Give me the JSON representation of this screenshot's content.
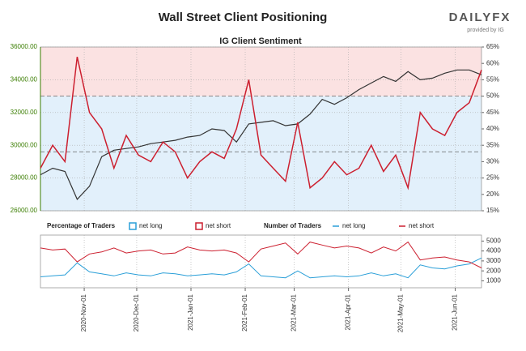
{
  "branding": {
    "logo": "DAILYFX",
    "provided_by": "provided by IG"
  },
  "chart_data": [
    {
      "type": "line",
      "title": "Wall Street Client Positioning",
      "subtitle": "IG Client Sentiment",
      "x": [
        "2020-10-07",
        "2020-10-14",
        "2020-10-21",
        "2020-10-28",
        "2020-11-04",
        "2020-11-11",
        "2020-11-18",
        "2020-11-25",
        "2020-12-02",
        "2020-12-09",
        "2020-12-16",
        "2020-12-23",
        "2020-12-30",
        "2021-01-06",
        "2021-01-13",
        "2021-01-20",
        "2021-01-27",
        "2021-02-03",
        "2021-02-10",
        "2021-02-17",
        "2021-02-24",
        "2021-03-03",
        "2021-03-10",
        "2021-03-17",
        "2021-03-24",
        "2021-03-31",
        "2021-04-07",
        "2021-04-14",
        "2021-04-21",
        "2021-04-28",
        "2021-05-05",
        "2021-05-12",
        "2021-05-19",
        "2021-05-26",
        "2021-06-02",
        "2021-06-09",
        "2021-06-16"
      ],
      "xlim": [
        "2020-10-07",
        "2021-06-16"
      ],
      "ylim": [
        26000,
        36000
      ],
      "yticks": [
        {
          "value": 26000,
          "label": "26000.00"
        },
        {
          "value": 28000,
          "label": "28000.00"
        },
        {
          "value": 30000,
          "label": "30000.00"
        },
        {
          "value": 32000,
          "label": "32000.00"
        },
        {
          "value": 34000,
          "label": "34000.00"
        },
        {
          "value": 36000,
          "label": "36000.00"
        }
      ],
      "y2lim": [
        15,
        65
      ],
      "y2ticks": [
        {
          "value": 15,
          "label": "15%"
        },
        {
          "value": 20,
          "label": "20%"
        },
        {
          "value": 25,
          "label": "25%"
        },
        {
          "value": 30,
          "label": "30%"
        },
        {
          "value": 35,
          "label": "35%"
        },
        {
          "value": 40,
          "label": "40%"
        },
        {
          "value": 45,
          "label": "45%"
        },
        {
          "value": 50,
          "label": "50%"
        },
        {
          "value": 55,
          "label": "55%"
        },
        {
          "value": 60,
          "label": "60%"
        },
        {
          "value": 65,
          "label": "65%"
        }
      ],
      "y2_reference_lines": [
        50,
        33
      ],
      "grid": true,
      "series": [
        {
          "color": "#333333",
          "values": [
            28200,
            28600,
            28400,
            26700,
            27500,
            29300,
            29700,
            29800,
            29900,
            30100,
            30200,
            30300,
            30500,
            30600,
            31000,
            30900,
            30200,
            31300,
            31400,
            31500,
            31200,
            31300,
            31900,
            32800,
            32500,
            32900,
            33400,
            33800,
            34200,
            33900,
            34500,
            34000,
            34100,
            34400,
            34600,
            34600,
            34300
          ]
        },
        {
          "color": "#cc1f2f",
          "axis": "y2",
          "values": [
            28,
            35,
            30,
            62,
            45,
            40,
            28,
            38,
            32,
            30,
            36,
            33,
            25,
            30,
            33,
            31,
            40,
            55,
            32,
            28,
            24,
            42,
            22,
            25,
            30,
            26,
            28,
            35,
            27,
            32,
            22,
            45,
            40,
            38,
            45,
            48,
            58
          ]
        }
      ]
    },
    {
      "type": "line",
      "x": [
        "2020-10-07",
        "2020-10-14",
        "2020-10-21",
        "2020-10-28",
        "2020-11-04",
        "2020-11-11",
        "2020-11-18",
        "2020-11-25",
        "2020-12-02",
        "2020-12-09",
        "2020-12-16",
        "2020-12-23",
        "2020-12-30",
        "2021-01-06",
        "2021-01-13",
        "2021-01-20",
        "2021-01-27",
        "2021-02-03",
        "2021-02-10",
        "2021-02-17",
        "2021-02-24",
        "2021-03-03",
        "2021-03-10",
        "2021-03-17",
        "2021-03-24",
        "2021-03-31",
        "2021-04-07",
        "2021-04-14",
        "2021-04-21",
        "2021-04-28",
        "2021-05-05",
        "2021-05-12",
        "2021-05-19",
        "2021-05-26",
        "2021-06-02",
        "2021-06-09",
        "2021-06-16"
      ],
      "xlim": [
        "2020-10-07",
        "2021-06-16"
      ],
      "xticks": [
        {
          "value": "2020-11-01",
          "label": "2020-Nov-01"
        },
        {
          "value": "2020-12-01",
          "label": "2020-Dec-01"
        },
        {
          "value": "2021-01-01",
          "label": "2021-Jan-01"
        },
        {
          "value": "2021-02-01",
          "label": "2021-Feb-01"
        },
        {
          "value": "2021-03-01",
          "label": "2021-Mar-01"
        },
        {
          "value": "2021-04-01",
          "label": "2021-Apr-01"
        },
        {
          "value": "2021-05-01",
          "label": "2021-May-01"
        },
        {
          "value": "2021-06-01",
          "label": "2021-Jun-01"
        }
      ],
      "ylim": [
        300,
        5600
      ],
      "yticks": [
        1000,
        2000,
        3000,
        4000,
        5000
      ],
      "legend": {
        "percentage_title": "Percentage of Traders",
        "percentage_items": [
          "net long",
          "net short"
        ],
        "number_title": "Number of Traders"
      },
      "series": [
        {
          "name": "net long",
          "color": "#2a9fd8",
          "values": [
            1400,
            1500,
            1600,
            2800,
            1900,
            1700,
            1500,
            1800,
            1600,
            1500,
            1800,
            1700,
            1500,
            1600,
            1700,
            1600,
            1900,
            2700,
            1500,
            1400,
            1300,
            2000,
            1300,
            1400,
            1500,
            1400,
            1500,
            1800,
            1500,
            1700,
            1300,
            2600,
            2300,
            2200,
            2500,
            2700,
            3300
          ]
        },
        {
          "name": "net short",
          "color": "#cc1f2f",
          "values": [
            4300,
            4100,
            4200,
            2900,
            3700,
            3900,
            4300,
            3800,
            4000,
            4100,
            3700,
            3800,
            4400,
            4100,
            4000,
            4100,
            3800,
            2900,
            4200,
            4500,
            4800,
            3700,
            4900,
            4600,
            4300,
            4500,
            4300,
            3800,
            4400,
            4000,
            4900,
            3100,
            3300,
            3400,
            3100,
            2900,
            2300
          ]
        }
      ]
    }
  ]
}
